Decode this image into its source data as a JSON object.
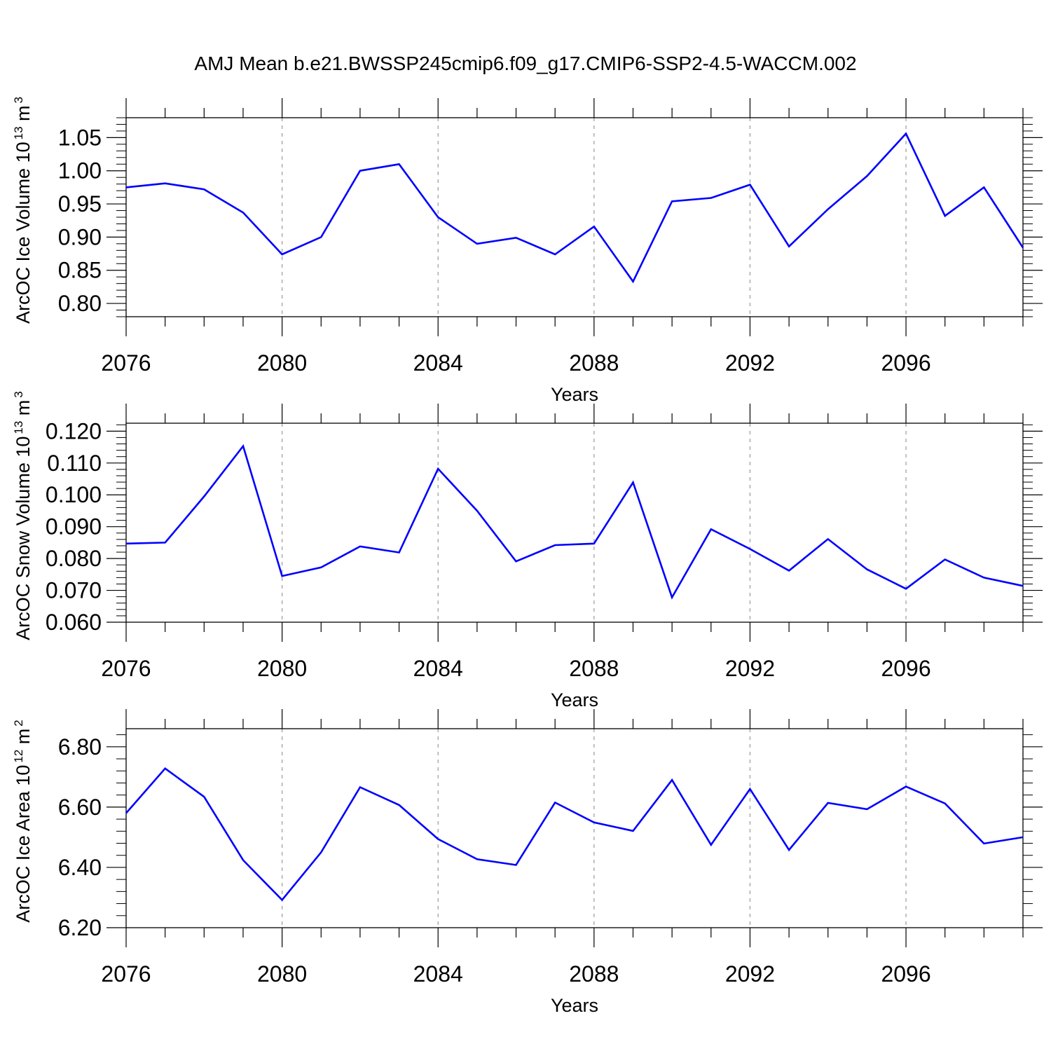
{
  "title": "AMJ Mean b.e21.BWSSP245cmip6.f09_g17.CMIP6-SSP2-4.5-WACCM.002",
  "chart_data": [
    {
      "type": "line",
      "ylabel": {
        "text": "ArcOC Ice Volume 10",
        "exp": "13",
        "unit": " m",
        "unit_exp": "3"
      },
      "xlabel": "Years",
      "xlim": [
        2076,
        2099
      ],
      "ylim": [
        0.78,
        1.08
      ],
      "yticks": [
        0.8,
        0.85,
        0.9,
        0.95,
        1.0,
        1.05
      ],
      "ytick_labels": [
        "0.80",
        "0.85",
        "0.90",
        "0.95",
        "1.00",
        "1.05"
      ],
      "xticks": [
        2076,
        2080,
        2084,
        2088,
        2092,
        2096
      ],
      "xtick_labels": [
        "2076",
        "2080",
        "2084",
        "2088",
        "2092",
        "2096"
      ],
      "x": [
        2076,
        2077,
        2078,
        2079,
        2080,
        2081,
        2082,
        2083,
        2084,
        2085,
        2086,
        2087,
        2088,
        2089,
        2090,
        2091,
        2092,
        2093,
        2094,
        2095,
        2096,
        2097,
        2098,
        2099
      ],
      "series": [
        {
          "color": "#0000ff",
          "values": [
            0.975,
            0.981,
            0.972,
            0.937,
            0.874,
            0.9,
            1.0,
            1.01,
            0.93,
            0.89,
            0.899,
            0.874,
            0.916,
            0.833,
            0.954,
            0.959,
            0.979,
            0.886,
            0.942,
            0.992,
            1.056,
            0.932,
            0.975,
            0.884
          ]
        }
      ]
    },
    {
      "type": "line",
      "ylabel": {
        "text": "ArcOC Snow Volume 10",
        "exp": "13",
        "unit": " m",
        "unit_exp": "3"
      },
      "xlabel": "Years",
      "xlim": [
        2076,
        2099
      ],
      "ylim": [
        0.06,
        0.1225
      ],
      "yticks": [
        0.06,
        0.07,
        0.08,
        0.09,
        0.1,
        0.11,
        0.12
      ],
      "ytick_labels": [
        "0.060",
        "0.070",
        "0.080",
        "0.090",
        "0.100",
        "0.110",
        "0.120"
      ],
      "xticks": [
        2076,
        2080,
        2084,
        2088,
        2092,
        2096
      ],
      "xtick_labels": [
        "2076",
        "2080",
        "2084",
        "2088",
        "2092",
        "2096"
      ],
      "x": [
        2076,
        2077,
        2078,
        2079,
        2080,
        2081,
        2082,
        2083,
        2084,
        2085,
        2086,
        2087,
        2088,
        2089,
        2090,
        2091,
        2092,
        2093,
        2094,
        2095,
        2096,
        2097,
        2098,
        2099
      ],
      "series": [
        {
          "color": "#0000ff",
          "values": [
            0.0847,
            0.085,
            0.0995,
            0.1153,
            0.0745,
            0.0772,
            0.0838,
            0.0819,
            0.1082,
            0.095,
            0.0791,
            0.0842,
            0.0847,
            0.1039,
            0.0678,
            0.0892,
            0.083,
            0.0762,
            0.0861,
            0.0766,
            0.0705,
            0.0797,
            0.074,
            0.0714
          ]
        }
      ]
    },
    {
      "type": "line",
      "ylabel": {
        "text": "ArcOC Ice Area 10",
        "exp": "12",
        "unit": " m",
        "unit_exp": "2"
      },
      "xlabel": "Years",
      "xlim": [
        2076,
        2099
      ],
      "ylim": [
        6.2,
        6.86
      ],
      "yticks": [
        6.2,
        6.4,
        6.6,
        6.8
      ],
      "ytick_labels": [
        "6.20",
        "6.40",
        "6.60",
        "6.80"
      ],
      "xticks": [
        2076,
        2080,
        2084,
        2088,
        2092,
        2096
      ],
      "xtick_labels": [
        "2076",
        "2080",
        "2084",
        "2088",
        "2092",
        "2096"
      ],
      "x": [
        2076,
        2077,
        2078,
        2079,
        2080,
        2081,
        2082,
        2083,
        2084,
        2085,
        2086,
        2087,
        2088,
        2089,
        2090,
        2091,
        2092,
        2093,
        2094,
        2095,
        2096,
        2097,
        2098,
        2099
      ],
      "series": [
        {
          "color": "#0000ff",
          "values": [
            6.58,
            6.728,
            6.634,
            6.424,
            6.292,
            6.45,
            6.666,
            6.607,
            6.494,
            6.427,
            6.408,
            6.615,
            6.549,
            6.521,
            6.69,
            6.475,
            6.66,
            6.458,
            6.614,
            6.593,
            6.668,
            6.612,
            6.479,
            6.5
          ]
        }
      ]
    }
  ]
}
